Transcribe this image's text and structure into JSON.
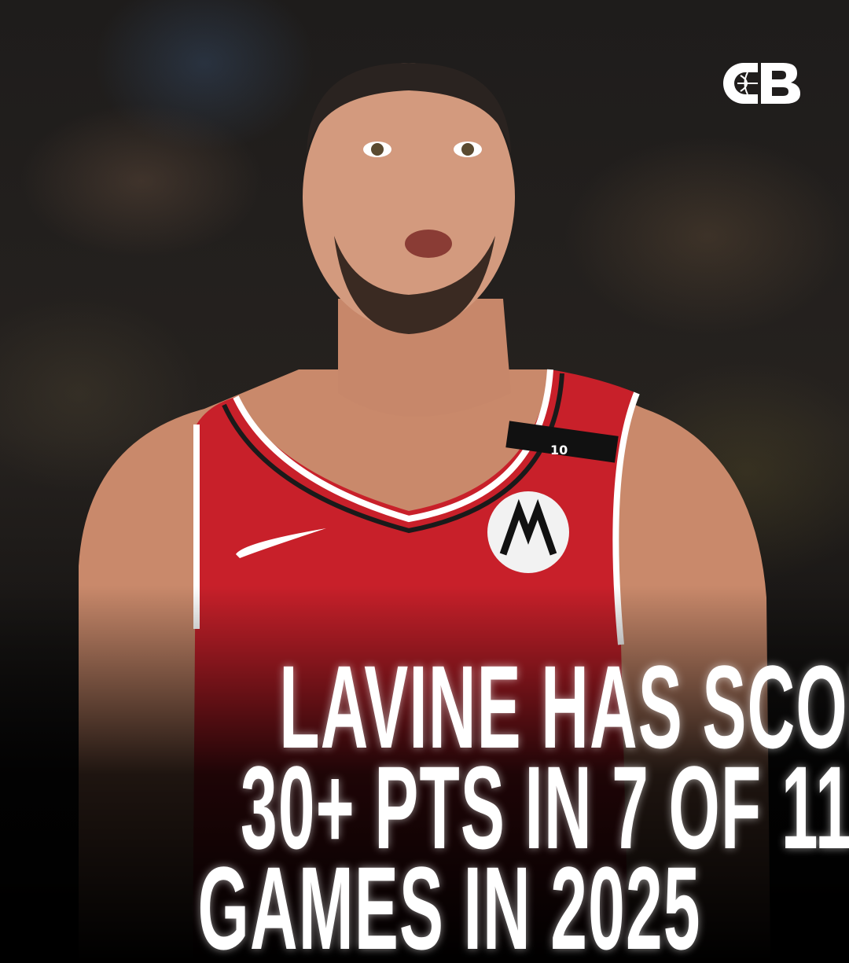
{
  "brand": {
    "logo_text": "CB",
    "logo_icon": "basketball-icon"
  },
  "jersey": {
    "number_patch": "10",
    "sponsor_icon": "motorola-icon",
    "maker_icon": "swoosh-icon"
  },
  "headline": {
    "lines": [
      "LAVINE HAS SCORED",
      "30+ PTS IN 7 OF 11",
      "GAMES IN 2025"
    ]
  },
  "colors": {
    "jersey_red": "#c8202a",
    "text": "#ffffff",
    "background": "#111111"
  }
}
